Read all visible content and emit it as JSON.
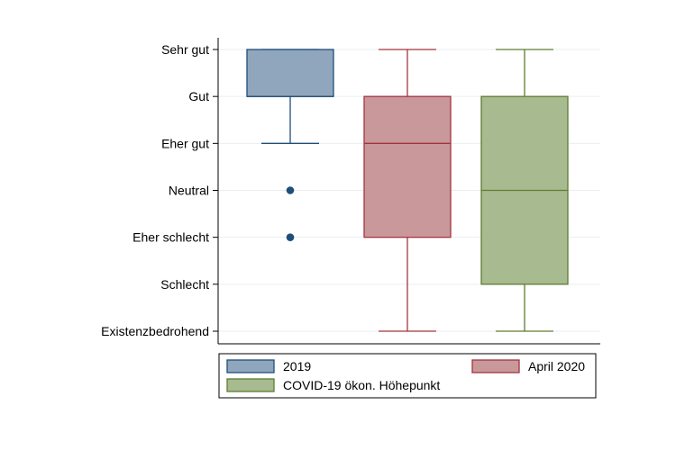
{
  "chart_data": {
    "type": "box",
    "y_categories": [
      "Existenzbedrohend",
      "Schlecht",
      "Eher schlecht",
      "Neutral",
      "Eher gut",
      "Gut",
      "Sehr gut"
    ],
    "ylim": [
      1,
      7
    ],
    "grid": true,
    "legend_position": "bottom",
    "series": [
      {
        "name": "2019",
        "color": "#8fa6bd",
        "edge": "#1f4e79",
        "whisker_low": 5,
        "q1": 6,
        "median": 6,
        "q3": 7,
        "whisker_high": 7,
        "outliers": [
          4,
          3
        ]
      },
      {
        "name": "April 2020",
        "color": "#c9989b",
        "edge": "#a3353f",
        "whisker_low": 1,
        "q1": 3,
        "median": 5,
        "q3": 6,
        "whisker_high": 7,
        "outliers": []
      },
      {
        "name": "COVID-19 ökon. Höhepunkt",
        "color": "#a8ba8f",
        "edge": "#5e7d32",
        "whisker_low": 1,
        "q1": 2,
        "median": 4,
        "q3": 6,
        "whisker_high": 7,
        "outliers": []
      }
    ]
  }
}
